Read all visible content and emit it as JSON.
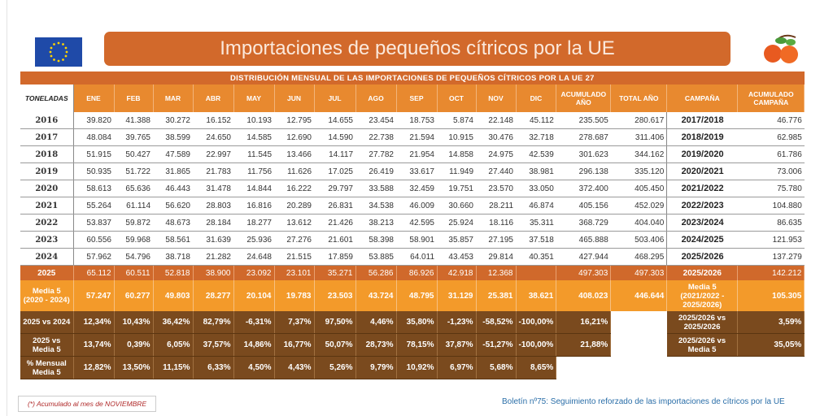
{
  "header": {
    "title": "Importaciones de pequeños cítricos por la UE",
    "logo_left": "eu-flag",
    "logo_right": "mandarin-fruit"
  },
  "table": {
    "title": "DISTRIBUCIÓN MENSUAL DE LAS IMPORTACIONES DE PEQUEÑOS CÍTRICOS POR LA UE 27",
    "columns": [
      "TONELADAS",
      "ENE",
      "FEB",
      "MAR",
      "ABR",
      "MAY",
      "JUN",
      "JUL",
      "AGO",
      "SEP",
      "OCT",
      "NOV",
      "DIC",
      "ACUMULADO AÑO",
      "TOTAL AÑO",
      "CAMPAÑA",
      "ACUMULADO CAMPAÑA"
    ],
    "year_rows": [
      [
        "2016",
        "39.820",
        "41.388",
        "30.272",
        "16.152",
        "10.193",
        "12.795",
        "14.655",
        "23.454",
        "18.753",
        "5.874",
        "22.148",
        "45.112",
        "235.505",
        "280.617",
        "2017/2018",
        "46.776"
      ],
      [
        "2017",
        "48.084",
        "39.765",
        "38.599",
        "24.650",
        "14.585",
        "12.690",
        "14.590",
        "22.738",
        "21.594",
        "10.915",
        "30.476",
        "32.718",
        "278.687",
        "311.406",
        "2018/2019",
        "62.985"
      ],
      [
        "2018",
        "51.915",
        "50.427",
        "47.589",
        "22.997",
        "11.545",
        "13.466",
        "14.117",
        "27.782",
        "21.954",
        "14.858",
        "24.975",
        "42.539",
        "301.623",
        "344.162",
        "2019/2020",
        "61.786"
      ],
      [
        "2019",
        "50.935",
        "51.722",
        "31.865",
        "21.783",
        "11.756",
        "11.626",
        "17.025",
        "26.419",
        "33.617",
        "11.949",
        "27.440",
        "38.981",
        "296.138",
        "335.120",
        "2020/2021",
        "73.006"
      ],
      [
        "2020",
        "58.613",
        "65.636",
        "46.443",
        "31.478",
        "14.844",
        "16.222",
        "29.797",
        "33.588",
        "32.459",
        "19.751",
        "23.570",
        "33.050",
        "372.400",
        "405.450",
        "2021/2022",
        "75.780"
      ],
      [
        "2021",
        "55.264",
        "61.114",
        "56.620",
        "28.803",
        "16.816",
        "20.289",
        "26.831",
        "34.538",
        "46.009",
        "30.660",
        "28.211",
        "46.874",
        "405.156",
        "452.029",
        "2022/2023",
        "104.880"
      ],
      [
        "2022",
        "53.837",
        "59.872",
        "48.673",
        "28.184",
        "18.277",
        "13.612",
        "21.426",
        "38.213",
        "42.595",
        "25.924",
        "18.116",
        "35.311",
        "368.729",
        "404.040",
        "2023/2024",
        "86.635"
      ],
      [
        "2023",
        "60.556",
        "59.968",
        "58.561",
        "31.639",
        "25.936",
        "27.276",
        "21.601",
        "58.398",
        "58.901",
        "35.857",
        "27.195",
        "37.518",
        "465.888",
        "503.406",
        "2024/2025",
        "121.953"
      ],
      [
        "2024",
        "57.962",
        "54.796",
        "38.718",
        "21.282",
        "24.648",
        "21.515",
        "17.859",
        "53.885",
        "64.011",
        "43.453",
        "29.814",
        "40.351",
        "427.944",
        "468.295",
        "2025/2026",
        "137.279"
      ]
    ],
    "current_row": [
      "2025",
      "65.112",
      "60.511",
      "52.818",
      "38.900",
      "23.092",
      "23.101",
      "35.271",
      "56.286",
      "86.926",
      "42.918",
      "12.368",
      "",
      "497.303",
      "497.303",
      "2025/2026",
      "142.212"
    ],
    "media_row": [
      "Media 5 (2020 - 2024)",
      "57.247",
      "60.277",
      "49.803",
      "28.277",
      "20.104",
      "19.783",
      "23.503",
      "43.724",
      "48.795",
      "31.129",
      "25.381",
      "38.621",
      "408.023",
      "446.644",
      "Media 5 (2021/2022 - 2025/2026)",
      "105.305"
    ],
    "pct_rows": [
      [
        "2025 vs 2024",
        "12,34%",
        "10,43%",
        "36,42%",
        "82,79%",
        "-6,31%",
        "7,37%",
        "97,50%",
        "4,46%",
        "35,80%",
        "-1,23%",
        "-58,52%",
        "-100,00%",
        "16,21%",
        "",
        "2025/2026 vs 2025/2026",
        "3,59%"
      ],
      [
        "2025 vs Media 5",
        "13,74%",
        "0,39%",
        "6,05%",
        "37,57%",
        "14,86%",
        "16,77%",
        "50,07%",
        "28,73%",
        "78,15%",
        "37,87%",
        "-51,27%",
        "-100,00%",
        "21,88%",
        "",
        "2025/2026 vs Media 5",
        "35,05%"
      ],
      [
        "% Mensual Media 5",
        "12,82%",
        "13,50%",
        "11,15%",
        "6,33%",
        "4,50%",
        "4,43%",
        "5,26%",
        "9,79%",
        "10,92%",
        "6,97%",
        "5,68%",
        "8,65%",
        "",
        "",
        "",
        ""
      ]
    ]
  },
  "footer": {
    "note": "(*) Acumulado al mes de NOVIEMBRE",
    "bulletin": "Boletín nº75: Seguimiento reforzado de las importaciones de cítricos por la UE"
  },
  "colors": {
    "title": "#d2692b",
    "header": "#e8892f",
    "current": "#d0692b",
    "media": "#f39a2a",
    "pct": "#7a4a1e",
    "link": "#2a6ea8",
    "note": "#b02a2a"
  }
}
